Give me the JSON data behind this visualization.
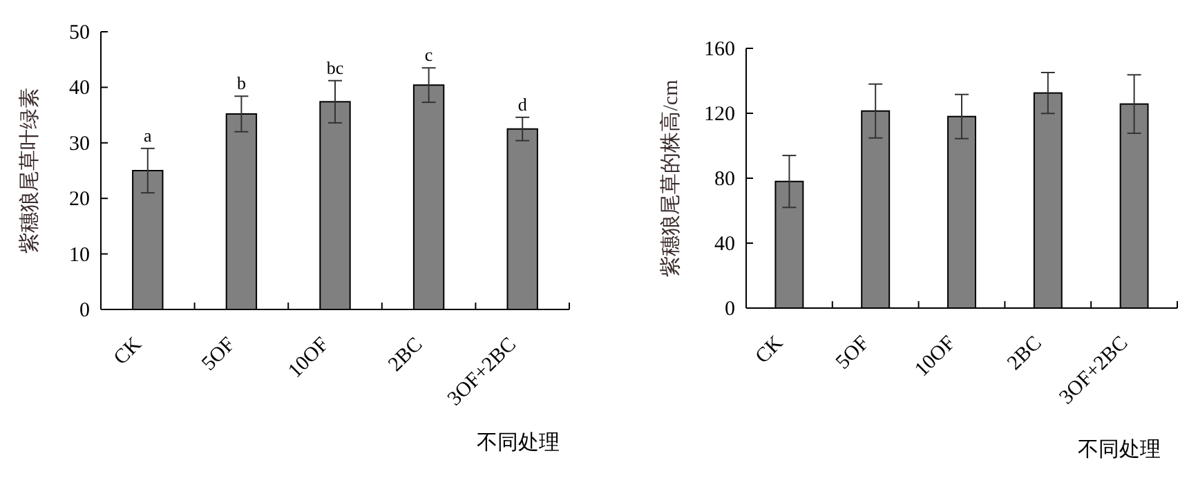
{
  "chart_data": [
    {
      "type": "bar",
      "categories": [
        "CK",
        "5OF",
        "10OF",
        "2BC",
        "3OF+2BC"
      ],
      "values": [
        25.0,
        35.2,
        37.4,
        40.4,
        32.5
      ],
      "errors": [
        4,
        3.2,
        3.8,
        3.1,
        2.1
      ],
      "color": "#808080",
      "ylabel": "紫穗狼尾草叶绿素",
      "xlabel": "不同处理",
      "ylim": [
        0,
        50
      ],
      "yticks": [
        0,
        10,
        20,
        30,
        40,
        50
      ],
      "annotations": [
        {
          "text": "a",
          "x": "CK",
          "y": 29
        },
        {
          "text": "b",
          "x": "5OF",
          "y": 38.4
        },
        {
          "text": "bc",
          "x": "10OF",
          "y": 41.2
        },
        {
          "text": "c",
          "x": "2BC",
          "y": 43.5
        },
        {
          "text": "d",
          "x": "3OF+2BC",
          "y": 34.6
        }
      ]
    },
    {
      "type": "bar",
      "categories": [
        "CK",
        "5OF",
        "10OF",
        "2BC",
        "3OF+2BC"
      ],
      "values": [
        78,
        121.4,
        118,
        132.5,
        125.7
      ],
      "errors": [
        16,
        16.6,
        13.6,
        12.6,
        18
      ],
      "color": "#808080",
      "ylabel": "紫穗狼尾草的株高/cm",
      "xlabel": "不同处理",
      "ylim": [
        0,
        160
      ],
      "yticks": [
        0,
        40,
        80,
        120,
        160
      ]
    }
  ]
}
